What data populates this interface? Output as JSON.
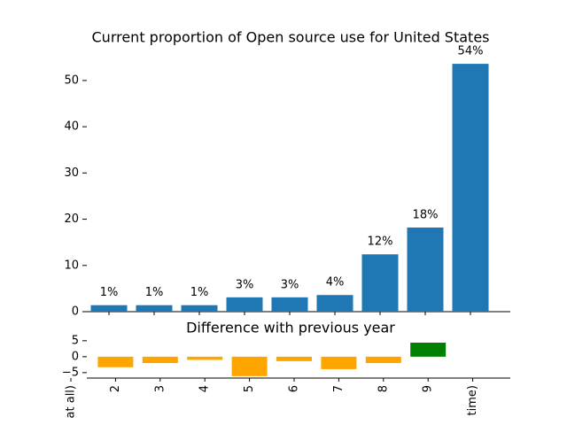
{
  "chart_data": [
    {
      "type": "bar",
      "title": "Current proportion of Open source use for United States",
      "categories": [
        null,
        null,
        null,
        null,
        null,
        null,
        null,
        null,
        null
      ],
      "values": [
        1.4,
        1.4,
        1.4,
        3.1,
        3.1,
        3.6,
        12.4,
        18.2,
        53.6
      ],
      "value_labels": [
        "1%",
        "1%",
        "1%",
        "3%",
        "3%",
        "4%",
        "12%",
        "18%",
        "54%"
      ],
      "color": "#1f77b4",
      "ylim": [
        0,
        56.3
      ],
      "yticks": [
        0,
        10,
        20,
        30,
        40,
        50
      ]
    },
    {
      "type": "bar",
      "title": "Difference with previous year",
      "categories": [
        "at all)",
        "2",
        "3",
        "4",
        "5",
        "6",
        "7",
        "8",
        "9",
        "time)"
      ],
      "values": [
        null,
        -3.3,
        -2,
        -1,
        -6.1,
        -1.4,
        -3.9,
        -2,
        4.4,
        null
      ],
      "colors": [
        null,
        "orange",
        "orange",
        "orange",
        "orange",
        "orange",
        "orange",
        "orange",
        "green",
        null
      ],
      "ylim": [
        -6.7,
        6.9
      ],
      "yticks": [
        {
          "value": -5,
          "label": "−5"
        },
        0,
        5
      ]
    }
  ]
}
